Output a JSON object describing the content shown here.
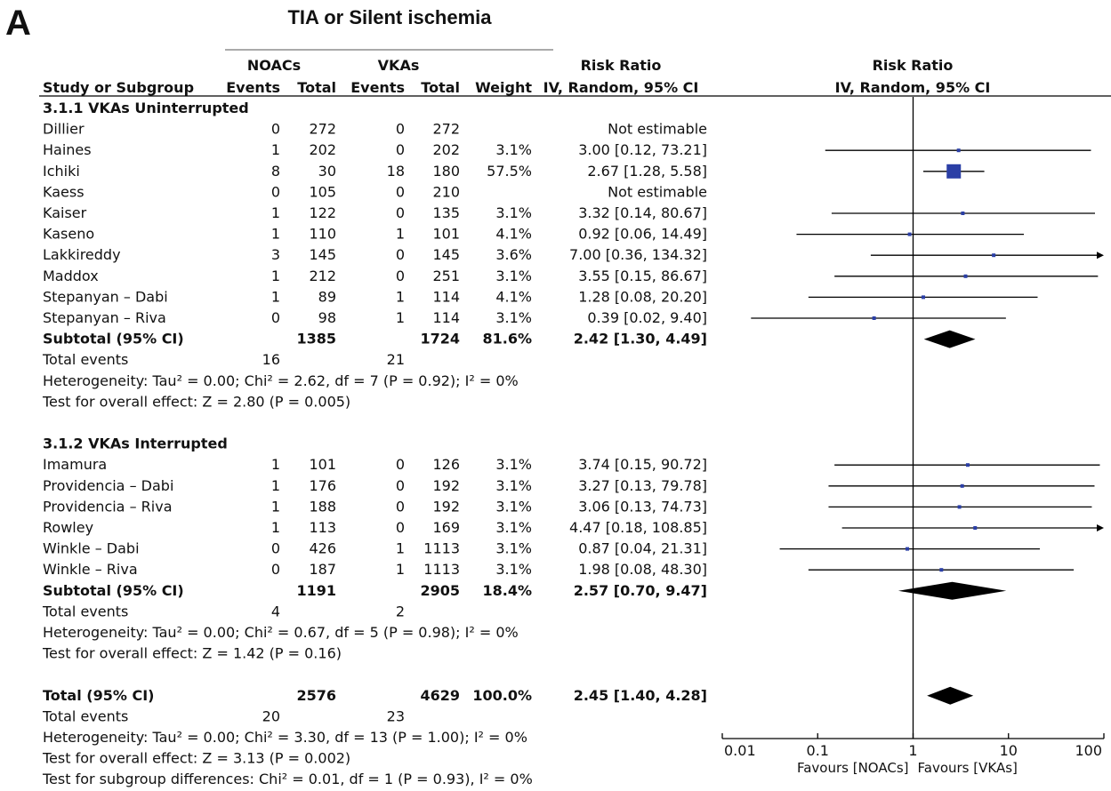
{
  "panel_letter": "A",
  "title": "TIA or Silent ischemia",
  "header": {
    "group1": "NOACs",
    "group2": "VKAs",
    "effect_title": "Risk Ratio",
    "effect_subtitle": "IV, Random, 95% CI",
    "plot_title": "Risk Ratio",
    "plot_subtitle": "IV, Random, 95% CI",
    "col_study": "Study or Subgroup",
    "col_events": "Events",
    "col_total": "Total",
    "col_weight": "Weight"
  },
  "chart_data": {
    "type": "forest",
    "xscale": "log",
    "xlim": [
      0.01,
      100
    ],
    "xticks": [
      "0.01",
      "0.1",
      "1",
      "10",
      "100"
    ],
    "xlabel_left": "Favours [NOACs]",
    "xlabel_right": "Favours [VKAs]",
    "rows": [
      {
        "kind": "heading",
        "label": "3.1.1 VKAs Uninterrupted"
      },
      {
        "kind": "study",
        "label": "Dillier",
        "e1": "0",
        "n1": "272",
        "e2": "0",
        "n2": "272",
        "weight": "",
        "ci_text": "Not estimable"
      },
      {
        "kind": "study",
        "label": "Haines",
        "e1": "1",
        "n1": "202",
        "e2": "0",
        "n2": "202",
        "weight": "3.1%",
        "ci_text": "3.00 [0.12, 73.21]",
        "rr": 3.0,
        "lo": 0.12,
        "hi": 73.21
      },
      {
        "kind": "study",
        "label": "Ichiki",
        "e1": "8",
        "n1": "30",
        "e2": "18",
        "n2": "180",
        "weight": "57.5%",
        "ci_text": "2.67 [1.28, 5.58]",
        "rr": 2.67,
        "lo": 1.28,
        "hi": 5.58,
        "w": 57.5
      },
      {
        "kind": "study",
        "label": "Kaess",
        "e1": "0",
        "n1": "105",
        "e2": "0",
        "n2": "210",
        "weight": "",
        "ci_text": "Not estimable"
      },
      {
        "kind": "study",
        "label": "Kaiser",
        "e1": "1",
        "n1": "122",
        "e2": "0",
        "n2": "135",
        "weight": "3.1%",
        "ci_text": "3.32 [0.14, 80.67]",
        "rr": 3.32,
        "lo": 0.14,
        "hi": 80.67
      },
      {
        "kind": "study",
        "label": "Kaseno",
        "e1": "1",
        "n1": "110",
        "e2": "1",
        "n2": "101",
        "weight": "4.1%",
        "ci_text": "0.92 [0.06, 14.49]",
        "rr": 0.92,
        "lo": 0.06,
        "hi": 14.49
      },
      {
        "kind": "study",
        "label": "Lakkireddy",
        "e1": "3",
        "n1": "145",
        "e2": "0",
        "n2": "145",
        "weight": "3.6%",
        "ci_text": "7.00 [0.36, 134.32]",
        "rr": 7.0,
        "lo": 0.36,
        "hi": 134.32
      },
      {
        "kind": "study",
        "label": "Maddox",
        "e1": "1",
        "n1": "212",
        "e2": "0",
        "n2": "251",
        "weight": "3.1%",
        "ci_text": "3.55 [0.15, 86.67]",
        "rr": 3.55,
        "lo": 0.15,
        "hi": 86.67
      },
      {
        "kind": "study",
        "label": "Stepanyan – Dabi",
        "e1": "1",
        "n1": "89",
        "e2": "1",
        "n2": "114",
        "weight": "4.1%",
        "ci_text": "1.28 [0.08, 20.20]",
        "rr": 1.28,
        "lo": 0.08,
        "hi": 20.2
      },
      {
        "kind": "study",
        "label": "Stepanyan – Riva",
        "e1": "0",
        "n1": "98",
        "e2": "1",
        "n2": "114",
        "weight": "3.1%",
        "ci_text": "0.39 [0.02, 9.40]",
        "rr": 0.39,
        "lo": 0.02,
        "hi": 9.4
      },
      {
        "kind": "subtotal",
        "label": "Subtotal (95% CI)",
        "n1": "1385",
        "n2": "1724",
        "weight": "81.6%",
        "ci_text": "2.42 [1.30, 4.49]",
        "rr": 2.42,
        "lo": 1.3,
        "hi": 4.49
      },
      {
        "kind": "events",
        "label": "Total events",
        "e1": "16",
        "e2": "21"
      },
      {
        "kind": "note",
        "text": "Heterogeneity: Tau² = 0.00; Chi² = 2.62, df = 7 (P = 0.92); I² = 0%"
      },
      {
        "kind": "note",
        "text": "Test for overall effect: Z = 2.80 (P = 0.005)"
      },
      {
        "kind": "blank"
      },
      {
        "kind": "heading",
        "label": "3.1.2 VKAs Interrupted"
      },
      {
        "kind": "study",
        "label": "Imamura",
        "e1": "1",
        "n1": "101",
        "e2": "0",
        "n2": "126",
        "weight": "3.1%",
        "ci_text": "3.74 [0.15, 90.72]",
        "rr": 3.74,
        "lo": 0.15,
        "hi": 90.72
      },
      {
        "kind": "study",
        "label": "Providencia – Dabi",
        "e1": "1",
        "n1": "176",
        "e2": "0",
        "n2": "192",
        "weight": "3.1%",
        "ci_text": "3.27 [0.13, 79.78]",
        "rr": 3.27,
        "lo": 0.13,
        "hi": 79.78
      },
      {
        "kind": "study",
        "label": "Providencia – Riva",
        "e1": "1",
        "n1": "188",
        "e2": "0",
        "n2": "192",
        "weight": "3.1%",
        "ci_text": "3.06 [0.13, 74.73]",
        "rr": 3.06,
        "lo": 0.13,
        "hi": 74.73
      },
      {
        "kind": "study",
        "label": "Rowley",
        "e1": "1",
        "n1": "113",
        "e2": "0",
        "n2": "169",
        "weight": "3.1%",
        "ci_text": "4.47 [0.18, 108.85]",
        "rr": 4.47,
        "lo": 0.18,
        "hi": 108.85
      },
      {
        "kind": "study",
        "label": "Winkle – Dabi",
        "e1": "0",
        "n1": "426",
        "e2": "1",
        "n2": "1113",
        "weight": "3.1%",
        "ci_text": "0.87 [0.04, 21.31]",
        "rr": 0.87,
        "lo": 0.04,
        "hi": 21.31
      },
      {
        "kind": "study",
        "label": "Winkle – Riva",
        "e1": "0",
        "n1": "187",
        "e2": "1",
        "n2": "1113",
        "weight": "3.1%",
        "ci_text": "1.98 [0.08, 48.30]",
        "rr": 1.98,
        "lo": 0.08,
        "hi": 48.3
      },
      {
        "kind": "subtotal",
        "label": "Subtotal (95% CI)",
        "n1": "1191",
        "n2": "2905",
        "weight": "18.4%",
        "ci_text": "2.57 [0.70, 9.47]",
        "rr": 2.57,
        "lo": 0.7,
        "hi": 9.47
      },
      {
        "kind": "events",
        "label": "Total events",
        "e1": "4",
        "e2": "2"
      },
      {
        "kind": "note",
        "text": "Heterogeneity: Tau² = 0.00; Chi² = 0.67, df = 5 (P = 0.98); I² = 0%"
      },
      {
        "kind": "note",
        "text": "Test for overall effect: Z = 1.42 (P = 0.16)"
      },
      {
        "kind": "blank"
      },
      {
        "kind": "total",
        "label": "Total (95% CI)",
        "n1": "2576",
        "n2": "4629",
        "weight": "100.0%",
        "ci_text": "2.45 [1.40, 4.28]",
        "rr": 2.45,
        "lo": 1.4,
        "hi": 4.28
      },
      {
        "kind": "events",
        "label": "Total events",
        "e1": "20",
        "e2": "23"
      },
      {
        "kind": "note",
        "text": "Heterogeneity: Tau² = 0.00; Chi² = 3.30, df = 13 (P = 1.00); I² = 0%"
      },
      {
        "kind": "note",
        "text": "Test for overall effect: Z = 3.13 (P = 0.002)"
      },
      {
        "kind": "note",
        "text": "Test for subgroup differences: Chi² = 0.01, df = 1 (P = 0.93), I² = 0%"
      }
    ]
  },
  "colors": {
    "marker": "#2b3fa6",
    "diamond": "#000000",
    "line": "#000000"
  }
}
